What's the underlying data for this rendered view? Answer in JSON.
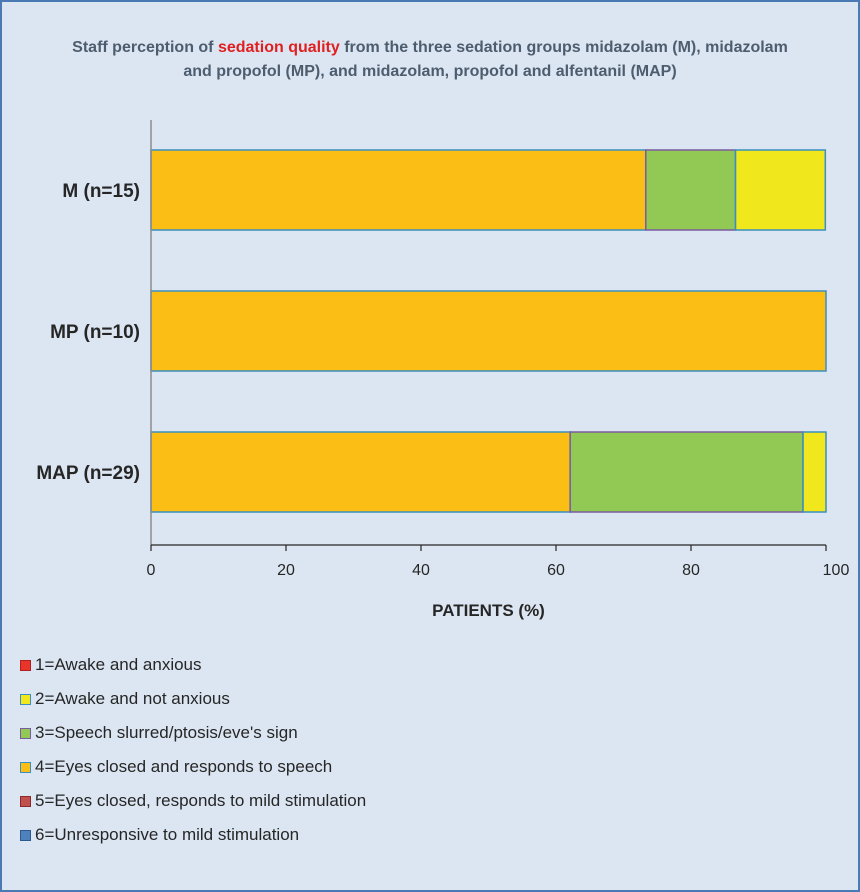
{
  "title": {
    "prefix": "Staff perception of ",
    "highlight": "sedation quality",
    "line1_rest": " from the three sedation groups midazolam (M), midazolam",
    "line2": "and propofol (MP), and midazolam, propofol and alfentanil (MAP)"
  },
  "chart_data": {
    "type": "bar",
    "orientation": "horizontal",
    "stacked": true,
    "title": "Staff perception of sedation quality from the three sedation groups midazolam (M), midazolam and propofol (MP), and midazolam, propofol and alfentanil (MAP)",
    "xlabel": "PATIENTS  (%)",
    "ylabel": "",
    "xlim": [
      0,
      100
    ],
    "xticks": [
      "0",
      "20",
      "40",
      "60",
      "80",
      "100"
    ],
    "categories": [
      "M (n=15)",
      "MP (n=10)",
      "MAP (n=29)"
    ],
    "series": [
      {
        "name": "1=Awake and anxious",
        "color": "#e8352a",
        "border": "#b02020",
        "values": [
          0,
          0,
          0
        ]
      },
      {
        "name": "2=Awake and not anxious",
        "color": "#f0e81c",
        "border": "#3a8fc0",
        "values": [
          13.3,
          0,
          3.4
        ]
      },
      {
        "name": "3=Speech slurred/ptosis/eve's sign",
        "color": "#92c955",
        "border": "#7a5aa0",
        "values": [
          13.3,
          0,
          34.5
        ]
      },
      {
        "name": "4=Eyes closed and responds to speech",
        "color": "#fbbe14",
        "border": "#3a8fc0",
        "values": [
          73.3,
          100,
          62.1
        ]
      },
      {
        "name": "5=Eyes closed, responds to mild stimulation",
        "color": "#c0504d",
        "border": "#8a2a2a",
        "values": [
          0,
          0,
          0
        ]
      },
      {
        "name": "6=Unresponsive to mild stimulation",
        "color": "#4f81bd",
        "border": "#2a5a90",
        "values": [
          0,
          0,
          0
        ]
      }
    ],
    "stack_order": [
      3,
      2,
      1,
      0,
      4,
      5
    ],
    "grid": false,
    "legend_position": "bottom-left"
  }
}
